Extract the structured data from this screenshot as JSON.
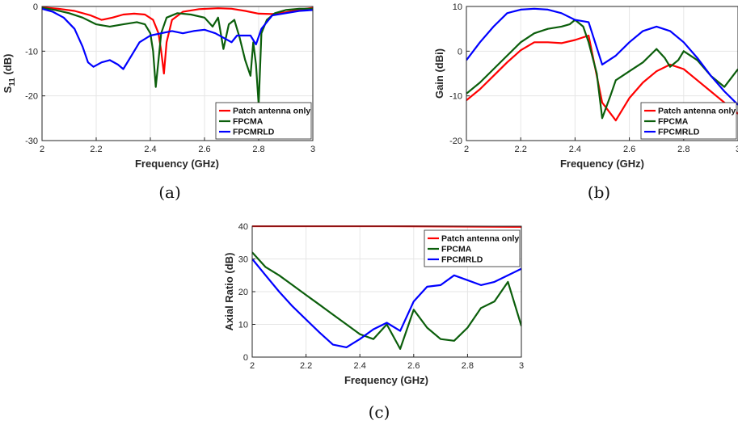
{
  "colors": {
    "patch": "#ff0000",
    "fpcma": "#0b5e0b",
    "fpcmrld": "#0000ff"
  },
  "chart_data": [
    {
      "id": "a",
      "type": "line",
      "caption": "(a)",
      "xlabel": "Frequency (GHz)",
      "ylabel_main": "S",
      "ylabel_sub": "11",
      "ylabel_rest": " (dB)",
      "xlim": [
        2,
        3
      ],
      "ylim": [
        -30,
        0
      ],
      "xticks": [
        2,
        2.2,
        2.4,
        2.6,
        2.8,
        3
      ],
      "xtick_labels": [
        "2",
        "2.2",
        "2.4",
        "2.6",
        "2.8",
        "3"
      ],
      "yticks": [
        -30,
        -20,
        -10,
        0
      ],
      "ytick_labels": [
        "-30",
        "-20",
        "-10",
        "0"
      ],
      "grid": true,
      "legend": "bottom-right",
      "series": [
        {
          "name": "Patch antenna only",
          "color_key": "patch",
          "x": [
            2,
            2.06,
            2.12,
            2.18,
            2.22,
            2.26,
            2.3,
            2.34,
            2.38,
            2.41,
            2.43,
            2.44,
            2.45,
            2.46,
            2.48,
            2.52,
            2.58,
            2.65,
            2.7,
            2.75,
            2.8,
            2.85,
            2.9,
            2.95,
            3
          ],
          "y": [
            -0.2,
            -0.5,
            -1.0,
            -2.0,
            -3.0,
            -2.5,
            -1.8,
            -1.6,
            -1.8,
            -3.0,
            -6.0,
            -10.0,
            -15.0,
            -8.0,
            -3.0,
            -1.2,
            -0.6,
            -0.4,
            -0.5,
            -1.0,
            -1.6,
            -1.7,
            -1.3,
            -0.7,
            -0.3
          ]
        },
        {
          "name": "FPCMA",
          "color_key": "fpcma",
          "x": [
            2,
            2.05,
            2.1,
            2.15,
            2.2,
            2.25,
            2.3,
            2.35,
            2.38,
            2.4,
            2.41,
            2.42,
            2.43,
            2.44,
            2.46,
            2.5,
            2.55,
            2.6,
            2.63,
            2.65,
            2.67,
            2.69,
            2.71,
            2.73,
            2.75,
            2.77,
            2.78,
            2.79,
            2.8,
            2.81,
            2.83,
            2.86,
            2.9,
            2.95,
            3
          ],
          "y": [
            -0.3,
            -0.8,
            -1.5,
            -2.5,
            -4.0,
            -4.5,
            -4.0,
            -3.5,
            -4.0,
            -6.0,
            -10.0,
            -18.0,
            -12.0,
            -6.0,
            -2.5,
            -1.5,
            -1.8,
            -2.5,
            -4.5,
            -2.5,
            -9.5,
            -4.0,
            -3.0,
            -7.0,
            -12.0,
            -15.5,
            -8.0,
            -13.0,
            -22.0,
            -6.0,
            -3.0,
            -1.5,
            -0.8,
            -0.5,
            -0.5
          ]
        },
        {
          "name": "FPCMRLD",
          "color_key": "fpcmrld",
          "x": [
            2,
            2.04,
            2.08,
            2.12,
            2.15,
            2.17,
            2.19,
            2.22,
            2.25,
            2.28,
            2.3,
            2.33,
            2.36,
            2.4,
            2.44,
            2.48,
            2.52,
            2.56,
            2.6,
            2.64,
            2.67,
            2.7,
            2.72,
            2.74,
            2.77,
            2.79,
            2.81,
            2.85,
            2.9,
            2.95,
            3
          ],
          "y": [
            -0.5,
            -1.2,
            -2.5,
            -5.0,
            -9.0,
            -12.5,
            -13.5,
            -12.5,
            -12.0,
            -13.0,
            -14.0,
            -11.0,
            -8.0,
            -6.5,
            -6.0,
            -5.5,
            -6.0,
            -5.5,
            -5.2,
            -6.0,
            -7.0,
            -8.0,
            -6.5,
            -6.5,
            -6.5,
            -8.5,
            -5.0,
            -2.0,
            -1.5,
            -1.0,
            -0.8
          ]
        }
      ]
    },
    {
      "id": "b",
      "type": "line",
      "caption": "(b)",
      "xlabel": "Frequency (GHz)",
      "ylabel": "Gain (dBi)",
      "xlim": [
        2,
        3
      ],
      "ylim": [
        -20,
        10
      ],
      "xticks": [
        2,
        2.2,
        2.4,
        2.6,
        2.8,
        3
      ],
      "xtick_labels": [
        "2",
        "2.2",
        "2.4",
        "2.6",
        "2.8",
        "3"
      ],
      "yticks": [
        -20,
        -10,
        0,
        10
      ],
      "ytick_labels": [
        "-20",
        "-10",
        "0",
        "10"
      ],
      "grid": true,
      "legend": "bottom-right",
      "series": [
        {
          "name": "Patch antenna only",
          "color_key": "patch",
          "x": [
            2,
            2.05,
            2.1,
            2.15,
            2.2,
            2.25,
            2.3,
            2.35,
            2.4,
            2.45,
            2.5,
            2.55,
            2.6,
            2.65,
            2.7,
            2.75,
            2.8,
            2.85,
            2.9,
            2.95,
            3
          ],
          "y": [
            -11,
            -8.5,
            -5.5,
            -2.5,
            0.2,
            2.0,
            2.0,
            1.8,
            2.5,
            3.5,
            -11.5,
            -15.5,
            -10.5,
            -7.0,
            -4.5,
            -3.0,
            -4.0,
            -6.5,
            -9.0,
            -11.5,
            -14.0
          ]
        },
        {
          "name": "FPCMA",
          "color_key": "fpcma",
          "x": [
            2,
            2.05,
            2.1,
            2.15,
            2.2,
            2.25,
            2.3,
            2.35,
            2.38,
            2.4,
            2.43,
            2.45,
            2.48,
            2.5,
            2.53,
            2.55,
            2.6,
            2.65,
            2.7,
            2.73,
            2.75,
            2.78,
            2.8,
            2.85,
            2.9,
            2.95,
            3
          ],
          "y": [
            -9.5,
            -7.0,
            -4.0,
            -1.0,
            2.0,
            4.0,
            5.0,
            5.5,
            6.0,
            7.0,
            5.5,
            2.0,
            -5.0,
            -15.0,
            -10.0,
            -6.5,
            -4.5,
            -2.5,
            0.5,
            -1.5,
            -3.5,
            -2.0,
            0.0,
            -2.0,
            -5.5,
            -8.0,
            -4.0
          ]
        },
        {
          "name": "FPCMRLD",
          "color_key": "fpcmrld",
          "x": [
            2,
            2.05,
            2.1,
            2.15,
            2.2,
            2.25,
            2.3,
            2.35,
            2.4,
            2.45,
            2.5,
            2.55,
            2.6,
            2.65,
            2.7,
            2.75,
            2.8,
            2.85,
            2.9,
            2.95,
            3
          ],
          "y": [
            -2.0,
            2.0,
            5.5,
            8.5,
            9.3,
            9.5,
            9.3,
            8.5,
            7.0,
            6.5,
            -3.0,
            -1.0,
            2.0,
            4.5,
            5.5,
            4.5,
            2.0,
            -1.5,
            -5.5,
            -9.0,
            -12.0
          ]
        }
      ]
    },
    {
      "id": "c",
      "type": "line",
      "caption": "(c)",
      "xlabel": "Frequency (GHz)",
      "ylabel": "Axial Ratio (dB)",
      "xlim": [
        2,
        3
      ],
      "ylim": [
        0,
        40
      ],
      "xticks": [
        2,
        2.2,
        2.4,
        2.6,
        2.8,
        3
      ],
      "xtick_labels": [
        "2",
        "2.2",
        "2.4",
        "2.6",
        "2.8",
        "3"
      ],
      "yticks": [
        0,
        10,
        20,
        30,
        40
      ],
      "ytick_labels": [
        "0",
        "10",
        "20",
        "30",
        "40"
      ],
      "grid": true,
      "legend": "top-right",
      "series": [
        {
          "name": "Patch antenna only",
          "color_key": "patch",
          "x": [
            2,
            2.5,
            3
          ],
          "y": [
            40.0,
            40.0,
            39.8
          ]
        },
        {
          "name": "FPCMA",
          "color_key": "fpcma",
          "x": [
            2,
            2.05,
            2.1,
            2.15,
            2.2,
            2.25,
            2.3,
            2.35,
            2.4,
            2.45,
            2.5,
            2.55,
            2.6,
            2.65,
            2.7,
            2.75,
            2.8,
            2.85,
            2.9,
            2.95,
            3
          ],
          "y": [
            32.0,
            27.5,
            25.0,
            22.0,
            19.0,
            16.0,
            13.0,
            10.0,
            7.0,
            5.5,
            10.0,
            2.5,
            14.5,
            9.0,
            5.5,
            5.0,
            9.0,
            15.0,
            17.0,
            23.0,
            9.5
          ]
        },
        {
          "name": "FPCMRLD",
          "color_key": "fpcmrld",
          "x": [
            2,
            2.05,
            2.1,
            2.15,
            2.2,
            2.25,
            2.3,
            2.35,
            2.4,
            2.45,
            2.5,
            2.55,
            2.6,
            2.65,
            2.7,
            2.75,
            2.8,
            2.85,
            2.9,
            2.95,
            3
          ],
          "y": [
            30.0,
            25.0,
            20.0,
            15.5,
            11.5,
            7.5,
            3.8,
            3.0,
            5.5,
            8.5,
            10.5,
            8.0,
            17.0,
            21.5,
            22.0,
            25.0,
            23.5,
            22.0,
            23.0,
            25.0,
            27.0
          ]
        }
      ]
    }
  ]
}
